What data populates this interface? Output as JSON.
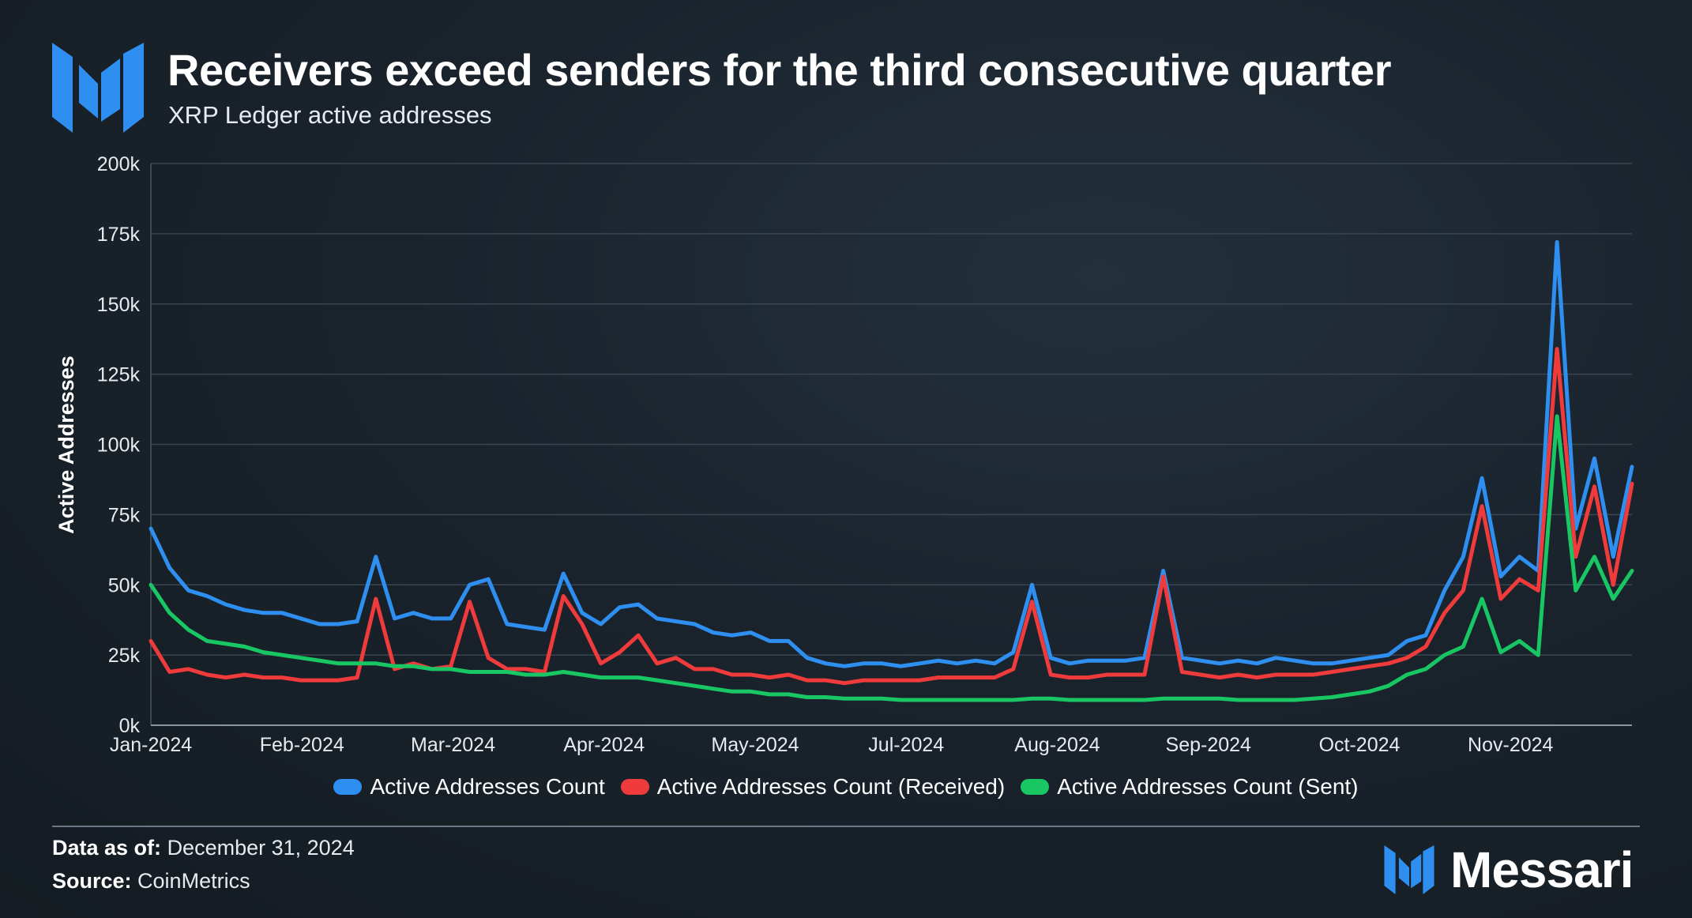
{
  "header": {
    "title": "Receivers exceed senders for the third consecutive quarter",
    "subtitle": "XRP Ledger active addresses"
  },
  "footer": {
    "data_label": "Data as of:",
    "data_value": "December 31, 2024",
    "source_label": "Source:",
    "source_value": "CoinMetrics"
  },
  "brand": {
    "name": "Messari",
    "color": "#2f8ff0"
  },
  "chart_data": {
    "type": "line",
    "title": "Receivers exceed senders for the third consecutive quarter",
    "subtitle": "XRP Ledger active addresses",
    "xlabel": "",
    "ylabel": "Active Addresses",
    "ylim": [
      0,
      200000
    ],
    "yticks": [
      0,
      25000,
      50000,
      75000,
      100000,
      125000,
      150000,
      175000,
      200000
    ],
    "ytick_labels": [
      "0k",
      "25k",
      "50k",
      "75k",
      "100k",
      "125k",
      "150k",
      "175k",
      "200k"
    ],
    "xticks": [
      "Jan-2024",
      "Feb-2024",
      "Mar-2024",
      "Apr-2024",
      "May-2024",
      "Jul-2024",
      "Aug-2024",
      "Sep-2024",
      "Oct-2024",
      "Nov-2024"
    ],
    "x_index_range": [
      0,
      79
    ],
    "grid": true,
    "legend_position": "bottom",
    "series": [
      {
        "name": "Active Addresses Count",
        "color": "#2f8ff0",
        "values": [
          70000,
          56000,
          48000,
          46000,
          43000,
          41000,
          40000,
          40000,
          38000,
          36000,
          36000,
          37000,
          60000,
          38000,
          40000,
          38000,
          38000,
          50000,
          52000,
          36000,
          35000,
          34000,
          54000,
          40000,
          36000,
          42000,
          43000,
          38000,
          37000,
          36000,
          33000,
          32000,
          33000,
          30000,
          30000,
          24000,
          22000,
          21000,
          22000,
          22000,
          21000,
          22000,
          23000,
          22000,
          23000,
          22000,
          26000,
          50000,
          24000,
          22000,
          23000,
          23000,
          23000,
          24000,
          55000,
          24000,
          23000,
          22000,
          23000,
          22000,
          24000,
          23000,
          22000,
          22000,
          23000,
          24000,
          25000,
          30000,
          32000,
          48000,
          60000,
          88000,
          53000,
          60000,
          55000,
          172000,
          70000,
          95000,
          60000,
          92000
        ]
      },
      {
        "name": "Active Addresses Count (Received)",
        "color": "#ef3b3b",
        "values": [
          30000,
          19000,
          20000,
          18000,
          17000,
          18000,
          17000,
          17000,
          16000,
          16000,
          16000,
          17000,
          45000,
          20000,
          22000,
          20000,
          21000,
          44000,
          24000,
          20000,
          20000,
          19000,
          46000,
          36000,
          22000,
          26000,
          32000,
          22000,
          24000,
          20000,
          20000,
          18000,
          18000,
          17000,
          18000,
          16000,
          16000,
          15000,
          16000,
          16000,
          16000,
          16000,
          17000,
          17000,
          17000,
          17000,
          20000,
          44000,
          18000,
          17000,
          17000,
          18000,
          18000,
          18000,
          53000,
          19000,
          18000,
          17000,
          18000,
          17000,
          18000,
          18000,
          18000,
          19000,
          20000,
          21000,
          22000,
          24000,
          28000,
          40000,
          48000,
          78000,
          45000,
          52000,
          48000,
          134000,
          60000,
          85000,
          50000,
          86000
        ]
      },
      {
        "name": "Active Addresses Count (Sent)",
        "color": "#18c664",
        "values": [
          50000,
          40000,
          34000,
          30000,
          29000,
          28000,
          26000,
          25000,
          24000,
          23000,
          22000,
          22000,
          22000,
          21000,
          21000,
          20000,
          20000,
          19000,
          19000,
          19000,
          18000,
          18000,
          19000,
          18000,
          17000,
          17000,
          17000,
          16000,
          15000,
          14000,
          13000,
          12000,
          12000,
          11000,
          11000,
          10000,
          10000,
          9500,
          9500,
          9500,
          9000,
          9000,
          9000,
          9000,
          9000,
          9000,
          9000,
          9500,
          9500,
          9000,
          9000,
          9000,
          9000,
          9000,
          9500,
          9500,
          9500,
          9500,
          9000,
          9000,
          9000,
          9000,
          9500,
          10000,
          11000,
          12000,
          14000,
          18000,
          20000,
          25000,
          28000,
          45000,
          26000,
          30000,
          25000,
          110000,
          48000,
          60000,
          45000,
          55000
        ]
      }
    ]
  }
}
